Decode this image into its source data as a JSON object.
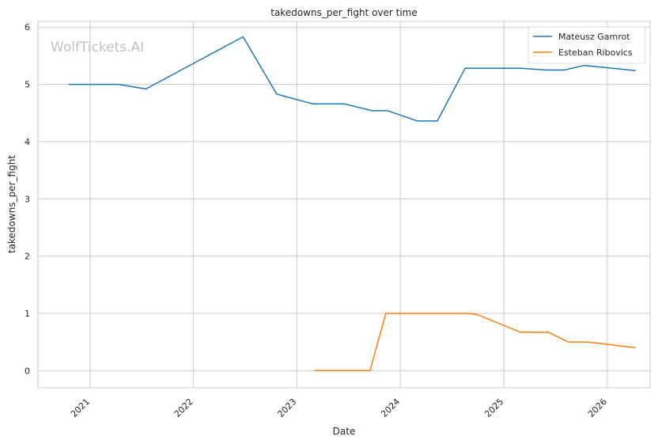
{
  "watermark": "WolfTickets.AI",
  "chart_data": {
    "type": "line",
    "title": "takedowns_per_fight over time",
    "xlabel": "Date",
    "ylabel": "takedowns_per_fight",
    "xlim": [
      "2020-07-01",
      "2026-06-01"
    ],
    "ylim": [
      -0.3,
      6.1
    ],
    "x_ticks": [
      "2021-01-01",
      "2022-01-01",
      "2023-01-01",
      "2024-01-01",
      "2025-01-01",
      "2026-01-01"
    ],
    "x_tick_labels": [
      "2021",
      "2022",
      "2023",
      "2024",
      "2025",
      "2026"
    ],
    "y_ticks": [
      0,
      1,
      2,
      3,
      4,
      5,
      6
    ],
    "y_tick_labels": [
      "0",
      "1",
      "2",
      "3",
      "4",
      "5",
      "6"
    ],
    "grid": true,
    "legend_position": "top-right",
    "series": [
      {
        "name": "Mateusz Gamrot",
        "color": "#1f77b4",
        "x": [
          "2020-10-17",
          "2021-04-10",
          "2021-07-17",
          "2022-06-25",
          "2022-10-22",
          "2023-02-25",
          "2023-06-17",
          "2023-09-23",
          "2023-11-18",
          "2024-03-02",
          "2024-05-11",
          "2024-08-17",
          "2025-03-01",
          "2025-05-31",
          "2025-08-02",
          "2025-10-11",
          "2026-04-11"
        ],
        "y": [
          5.0,
          5.0,
          4.92,
          5.83,
          4.83,
          4.66,
          4.66,
          4.54,
          4.54,
          4.36,
          4.36,
          5.28,
          5.28,
          5.25,
          5.25,
          5.33,
          5.24
        ]
      },
      {
        "name": "Esteban Ribovics",
        "color": "#ff7f0e",
        "x": [
          "2023-03-04",
          "2023-09-16",
          "2023-11-11",
          "2024-08-24",
          "2024-09-28",
          "2025-03-01",
          "2025-06-07",
          "2025-08-16",
          "2025-10-25",
          "2026-04-11"
        ],
        "y": [
          0.0,
          0.0,
          1.0,
          1.0,
          0.98,
          0.67,
          0.67,
          0.5,
          0.5,
          0.4
        ]
      }
    ]
  }
}
